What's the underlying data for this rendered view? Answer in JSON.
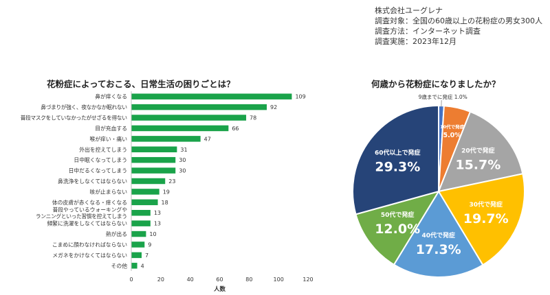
{
  "survey_info": {
    "company": "株式会社ユーグレナ",
    "target": "調査対象：全国の60歳以上の花粉症の男女300人",
    "method": "調査方法：インターネット調査",
    "date": "調査実施：2023年12月"
  },
  "chart_data": [
    {
      "type": "bar",
      "orientation": "horizontal",
      "title": "花粉症によっておこる、日常生活の困りごとは？",
      "xlabel": "人数",
      "ylabel": "",
      "xlim": [
        0,
        120
      ],
      "xticks": [
        0,
        20,
        40,
        60,
        80,
        100,
        120
      ],
      "grid": false,
      "bar_color": "#1aa34a",
      "categories": [
        "鼻が痒くなる",
        "鼻づまりが強く、夜なかなか眠れない",
        "普段マスクをしていなかったがせざるを得ない",
        "目が充血する",
        "喉が痒い・痛い",
        "外出を控えてしまう",
        "日中眠くなってしまう",
        "日中だるくなってしまう",
        "鼻洗浄をしなくてはならない",
        "咳が止まらない",
        "体の皮膚が赤くなる・痒くなる",
        [
          "普段やっているウォーキングや",
          "ランニングといった習慣を控えてしまう"
        ],
        "頻繁に洗濯をしなくてはならない",
        "熱が出る",
        "こまめに顔わなければならない",
        "メガネをかけなくてはならない",
        "その他"
      ],
      "values": [
        109,
        92,
        78,
        66,
        47,
        31,
        30,
        30,
        23,
        19,
        18,
        13,
        13,
        10,
        9,
        7,
        4
      ]
    },
    {
      "type": "pie",
      "title": "何歳から花粉症になりましたか？",
      "slices": [
        {
          "label": "9歳までに発症",
          "value": 1.0,
          "display": "1.0%",
          "color": "#4472c4"
        },
        {
          "label": "10代で発症",
          "value": 5.0,
          "display": "5.0%",
          "color": "#ed7d31"
        },
        {
          "label": "20代で発症",
          "value": 15.7,
          "display": "15.7%",
          "color": "#a5a5a5"
        },
        {
          "label": "30代で発症",
          "value": 19.7,
          "display": "19.7%",
          "color": "#ffc000"
        },
        {
          "label": "40代で発症",
          "value": 17.3,
          "display": "17.3%",
          "color": "#5b9bd5"
        },
        {
          "label": "50代で発症",
          "value": 12.0,
          "display": "12.0%",
          "color": "#70ad47"
        },
        {
          "label": "60代以上で発症",
          "value": 29.3,
          "display": "29.3%",
          "color": "#264478"
        }
      ]
    }
  ]
}
